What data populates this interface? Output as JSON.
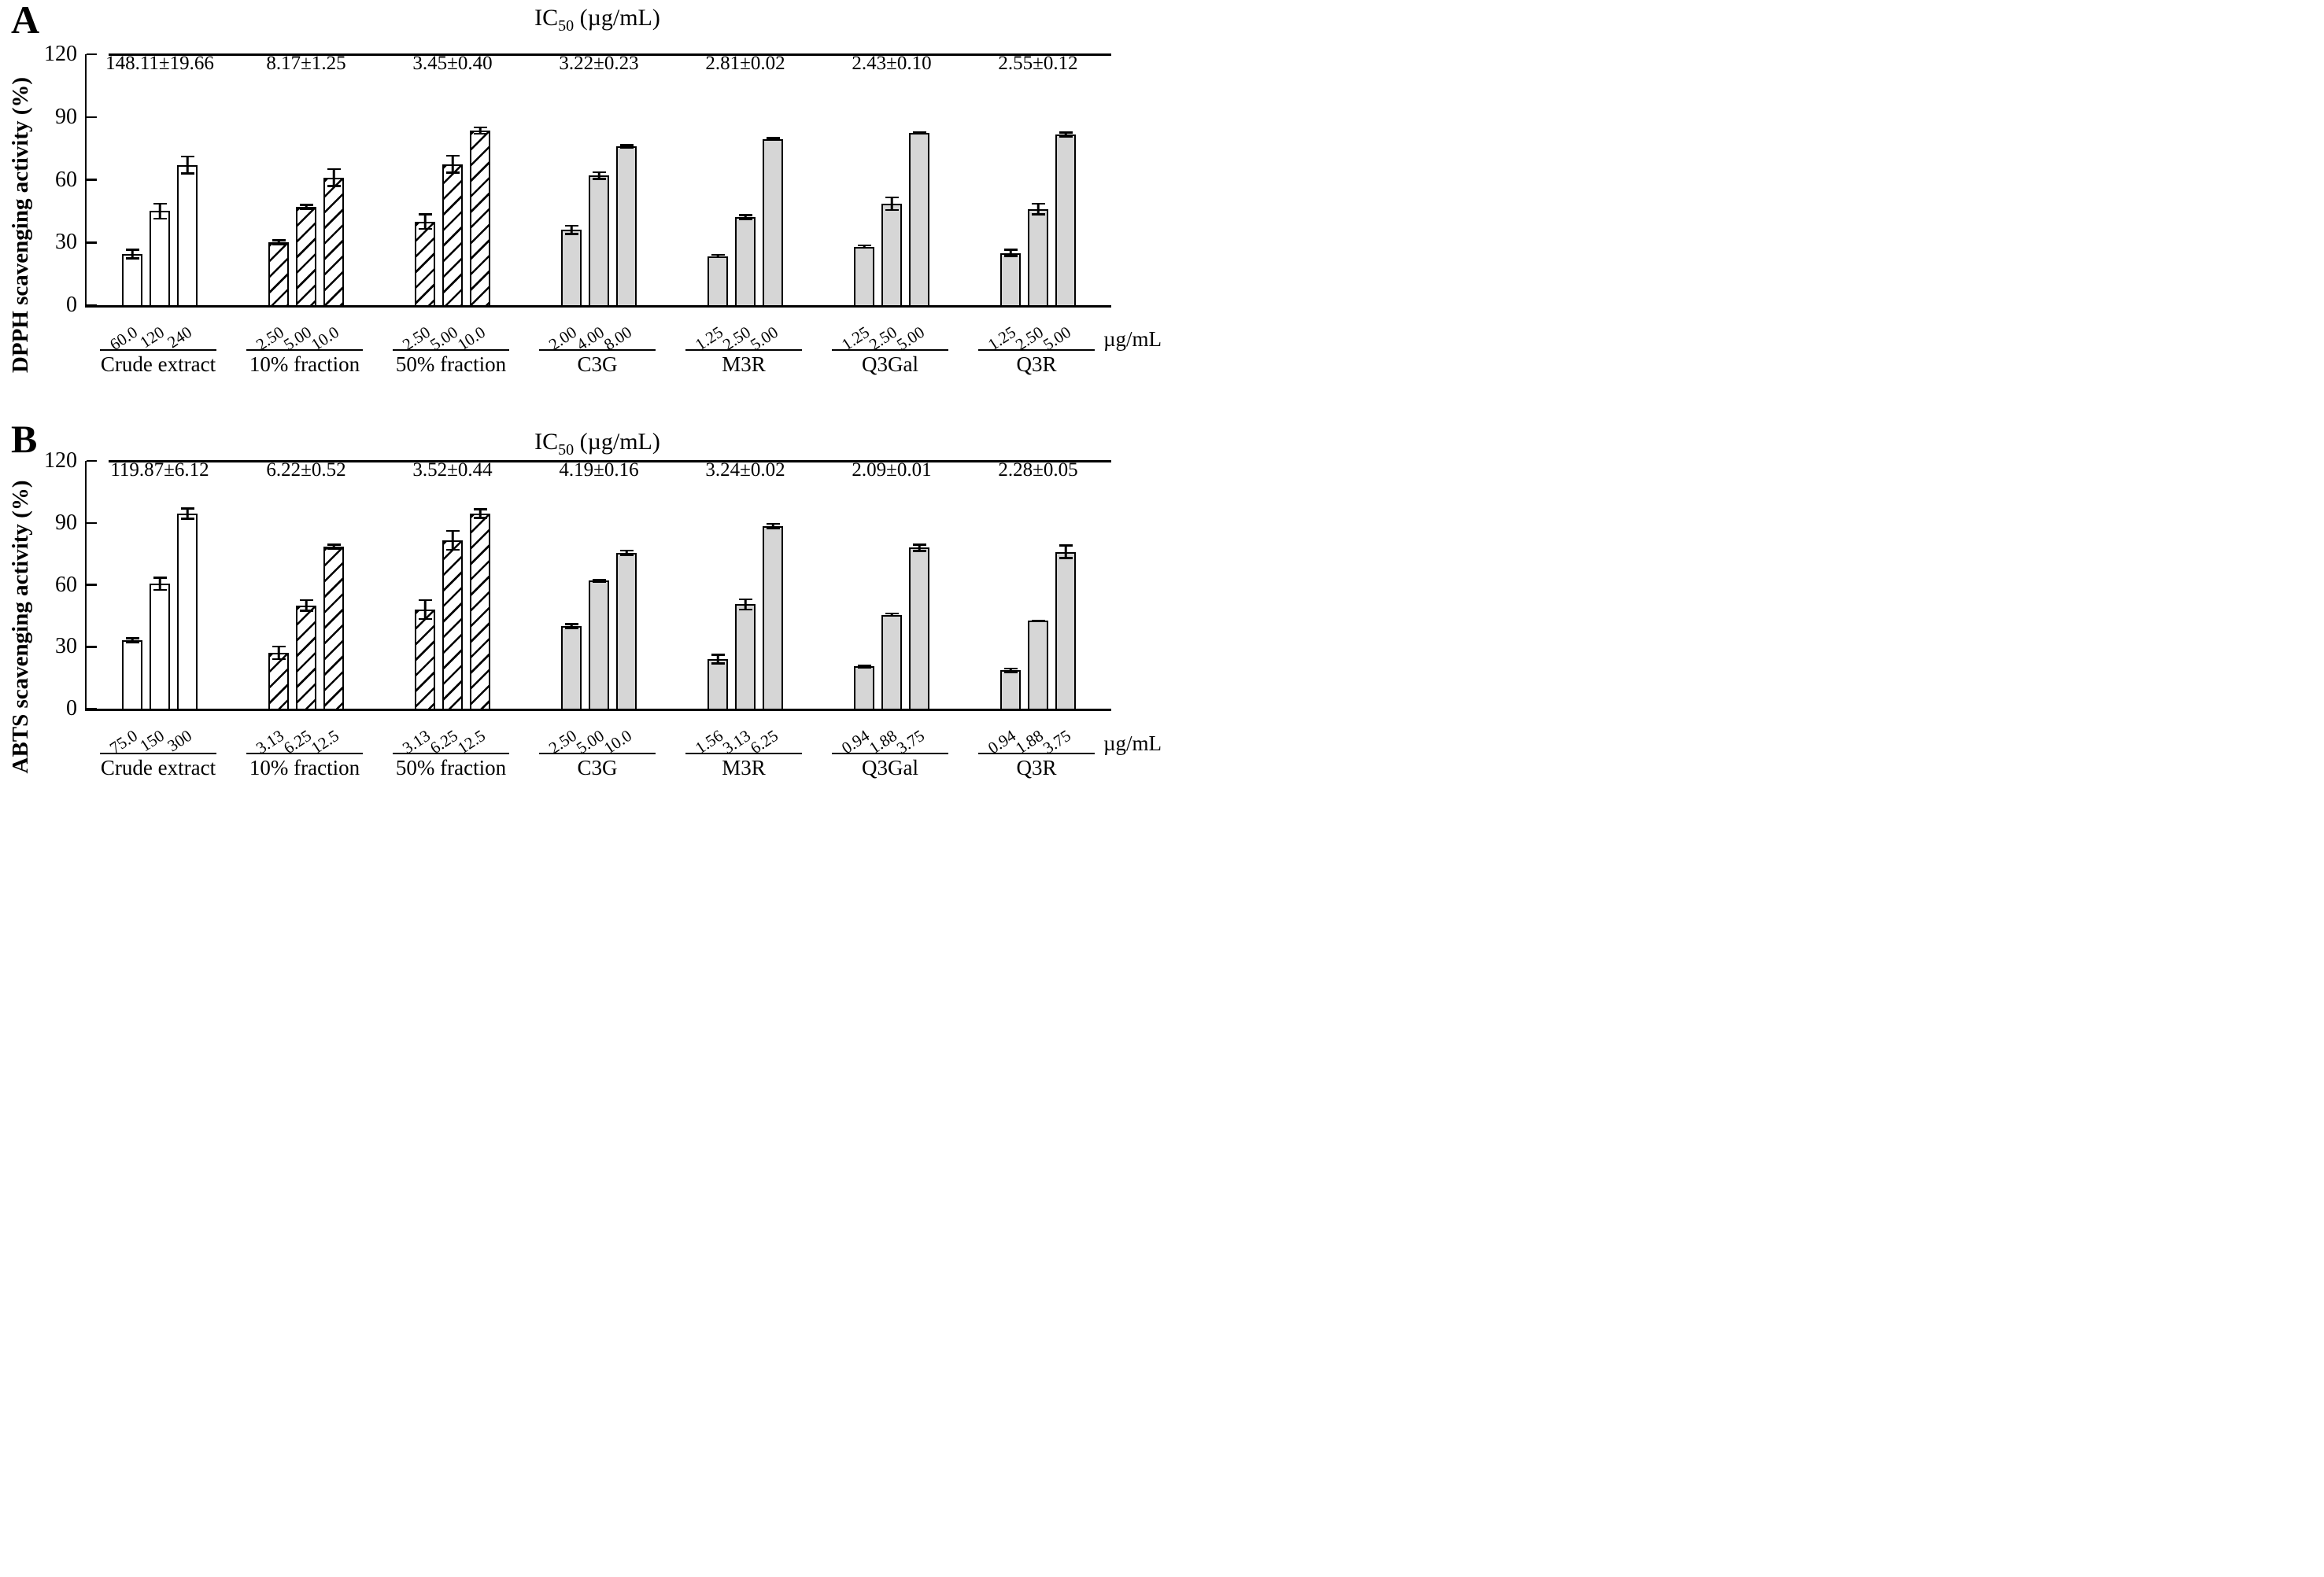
{
  "chart_data": [
    {
      "type": "bar",
      "panel": "A",
      "title": "IC50 (µg/mL)",
      "title_parts": {
        "main": "IC",
        "sub": "50",
        "unit": " (µg/mL)"
      },
      "ylabel": "DPPH scavenging activity (%)",
      "x_unit": "µg/mL",
      "ylim": [
        0,
        120
      ],
      "yticks": [
        0,
        30,
        60,
        90,
        120
      ],
      "grid": false,
      "legend": "none",
      "groups": [
        {
          "name": "Crude extract",
          "ic50": "148.11±19.66",
          "fill": "white",
          "doses": [
            "60.0",
            "120",
            "240"
          ],
          "values": [
            24.5,
            45,
            67
          ],
          "errors": [
            2.5,
            4,
            4.5
          ]
        },
        {
          "name": "10% fraction",
          "ic50": "8.17±1.25",
          "fill": "hatch",
          "doses": [
            "2.50",
            "5.00",
            "10.0"
          ],
          "values": [
            30,
            47,
            61
          ],
          "errors": [
            1.5,
            1.5,
            4.5
          ]
        },
        {
          "name": "50% fraction",
          "ic50": "3.45±0.40",
          "fill": "hatch",
          "doses": [
            "2.50",
            "5.00",
            "10.0"
          ],
          "values": [
            40,
            67.5,
            83.5
          ],
          "errors": [
            4,
            4.5,
            2
          ]
        },
        {
          "name": "C3G",
          "ic50": "3.22±0.23",
          "fill": "grey",
          "doses": [
            "2.00",
            "4.00",
            "8.00"
          ],
          "values": [
            36,
            62,
            76
          ],
          "errors": [
            2.5,
            2,
            1
          ]
        },
        {
          "name": "M3R",
          "ic50": "2.81±0.02",
          "fill": "grey",
          "doses": [
            "1.25",
            "2.50",
            "5.00"
          ],
          "values": [
            23.5,
            42,
            79.5
          ],
          "errors": [
            1,
            1.5,
            1
          ]
        },
        {
          "name": "Q3Gal",
          "ic50": "2.43±0.10",
          "fill": "grey",
          "doses": [
            "1.25",
            "2.50",
            "5.00"
          ],
          "values": [
            28,
            48.5,
            82.5
          ],
          "errors": [
            1,
            3.5,
            0.5
          ]
        },
        {
          "name": "Q3R",
          "ic50": "2.55±0.12",
          "fill": "grey",
          "doses": [
            "1.25",
            "2.50",
            "5.00"
          ],
          "values": [
            25,
            46,
            81.5
          ],
          "errors": [
            2,
            3,
            1.5
          ]
        }
      ]
    },
    {
      "type": "bar",
      "panel": "B",
      "title": "IC50 (µg/mL)",
      "title_parts": {
        "main": "IC",
        "sub": "50",
        "unit": " (µg/mL)"
      },
      "ylabel": "ABTS scavenging activity (%)",
      "x_unit": "µg/mL",
      "ylim": [
        0,
        120
      ],
      "yticks": [
        0,
        30,
        60,
        90,
        120
      ],
      "grid": false,
      "legend": "none",
      "groups": [
        {
          "name": "Crude extract",
          "ic50": "119.87±6.12",
          "fill": "white",
          "doses": [
            "75.0",
            "150",
            "300"
          ],
          "values": [
            33,
            60.5,
            94.5
          ],
          "errors": [
            1.5,
            3.5,
            3
          ]
        },
        {
          "name": "10% fraction",
          "ic50": "6.22±0.52",
          "fill": "hatch",
          "doses": [
            "3.13",
            "6.25",
            "12.5"
          ],
          "values": [
            27,
            50,
            78.5
          ],
          "errors": [
            3.5,
            3,
            1.5
          ]
        },
        {
          "name": "50% fraction",
          "ic50": "3.52±0.44",
          "fill": "hatch",
          "doses": [
            "3.13",
            "6.25",
            "12.5"
          ],
          "values": [
            48,
            81.5,
            94.5
          ],
          "errors": [
            5,
            5,
            2.5
          ]
        },
        {
          "name": "C3G",
          "ic50": "4.19±0.16",
          "fill": "grey",
          "doses": [
            "2.50",
            "5.00",
            "10.0"
          ],
          "values": [
            40,
            62,
            75.5
          ],
          "errors": [
            1.5,
            1,
            1.5
          ]
        },
        {
          "name": "M3R",
          "ic50": "3.24±0.02",
          "fill": "grey",
          "doses": [
            "1.56",
            "3.13",
            "6.25"
          ],
          "values": [
            24,
            50.5,
            88.5
          ],
          "errors": [
            2.5,
            3,
            1.5
          ]
        },
        {
          "name": "Q3Gal",
          "ic50": "2.09±0.01",
          "fill": "grey",
          "doses": [
            "0.94",
            "1.88",
            "3.75"
          ],
          "values": [
            20.5,
            45.5,
            78
          ],
          "errors": [
            1,
            1,
            2
          ]
        },
        {
          "name": "Q3R",
          "ic50": "2.28±0.05",
          "fill": "grey",
          "doses": [
            "0.94",
            "1.88",
            "3.75"
          ],
          "values": [
            18.5,
            42.5,
            76
          ],
          "errors": [
            1.5,
            0.5,
            3.5
          ]
        }
      ]
    }
  ]
}
